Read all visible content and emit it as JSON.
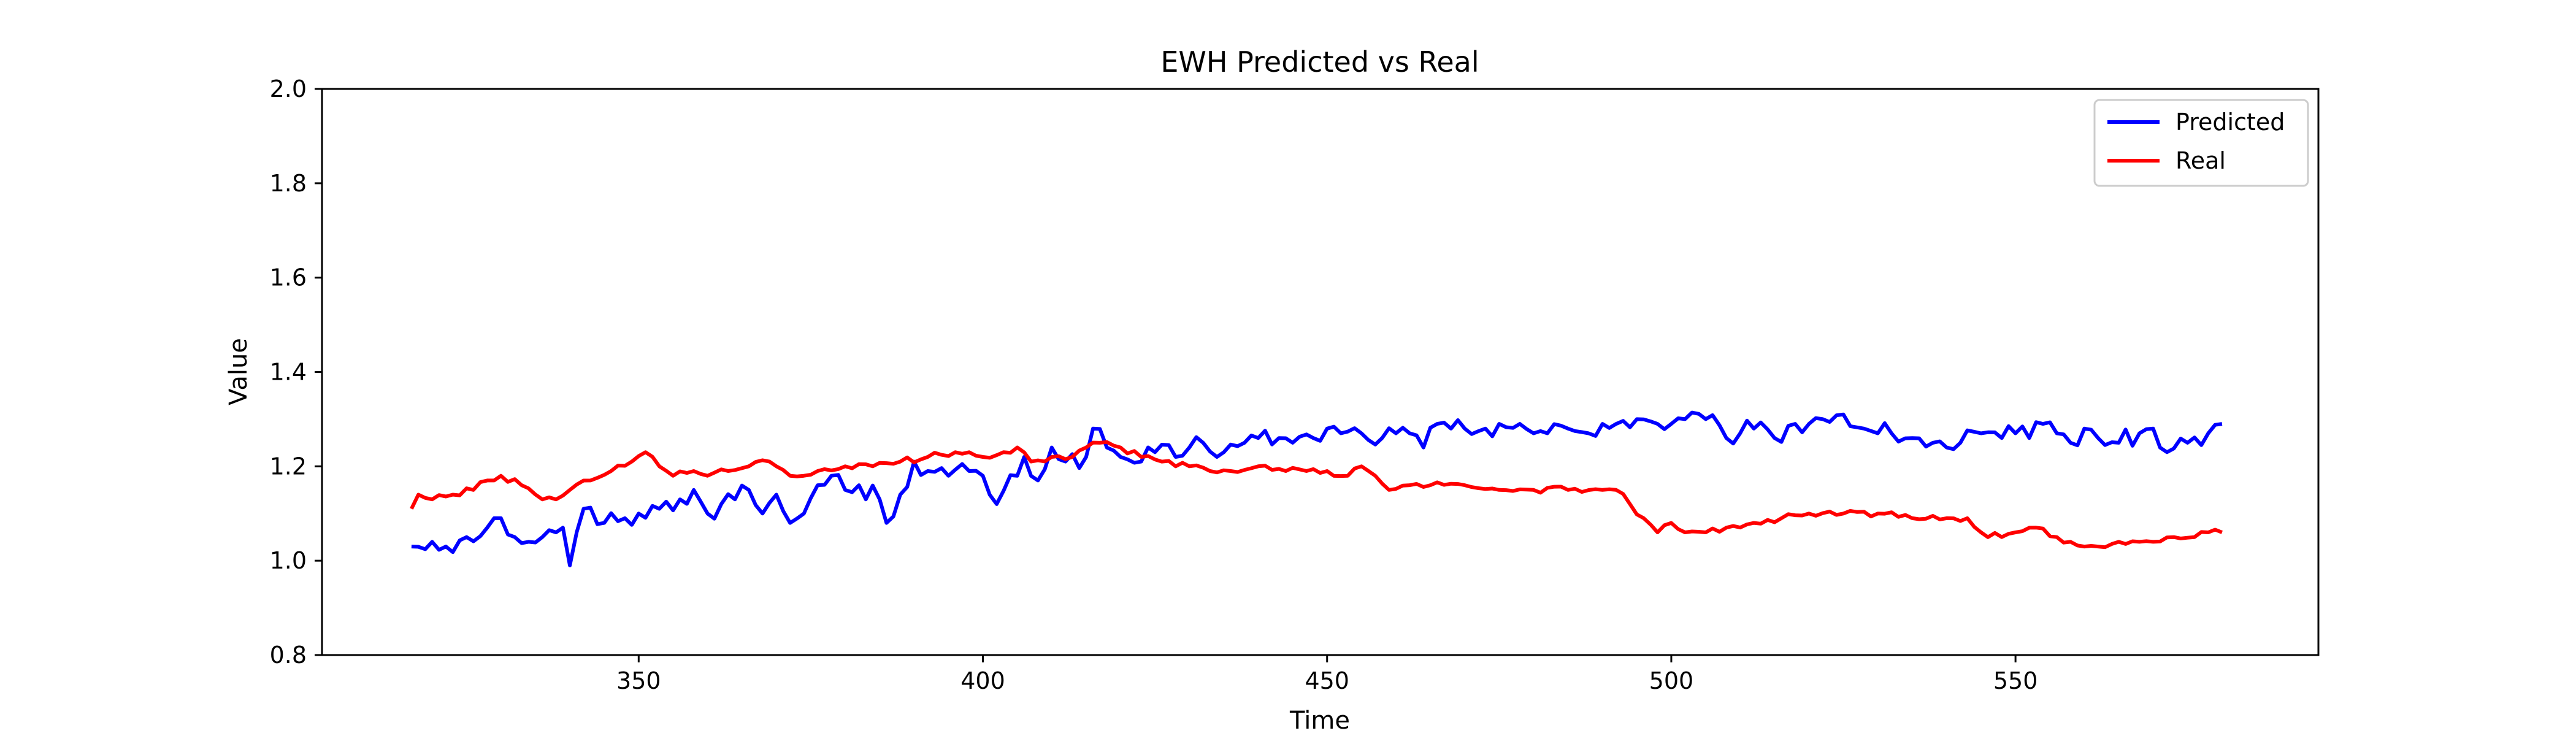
{
  "chart_data": {
    "type": "line",
    "title": "EWH Predicted vs Real",
    "xlabel": "Time",
    "ylabel": "Value",
    "xlim": [
      304,
      594
    ],
    "ylim": [
      0.8,
      2.0
    ],
    "xticks": [
      350,
      400,
      450,
      500,
      550
    ],
    "yticks": [
      0.8,
      1.0,
      1.2,
      1.4,
      1.6,
      1.8,
      2.0
    ],
    "xtick_labels": [
      "350",
      "400",
      "450",
      "500",
      "550"
    ],
    "ytick_labels": [
      "0.8",
      "1.0",
      "1.2",
      "1.4",
      "1.6",
      "1.8",
      "2.0"
    ],
    "grid": false,
    "legend_position": "top-right",
    "x_start": 317,
    "x_end": 580,
    "series": [
      {
        "name": "Predicted",
        "color": "#0000ff",
        "anchors": [
          [
            317,
            1.03
          ],
          [
            320,
            1.04
          ],
          [
            322,
            1.03
          ],
          [
            325,
            1.05
          ],
          [
            328,
            1.07
          ],
          [
            330,
            1.09
          ],
          [
            332,
            1.05
          ],
          [
            334,
            1.04
          ],
          [
            336,
            1.05
          ],
          [
            338,
            1.06
          ],
          [
            339,
            1.07
          ],
          [
            340,
            0.99
          ],
          [
            342,
            1.11
          ],
          [
            345,
            1.08
          ],
          [
            348,
            1.09
          ],
          [
            350,
            1.1
          ],
          [
            353,
            1.11
          ],
          [
            356,
            1.13
          ],
          [
            358,
            1.15
          ],
          [
            360,
            1.1
          ],
          [
            362,
            1.12
          ],
          [
            364,
            1.13
          ],
          [
            366,
            1.15
          ],
          [
            368,
            1.1
          ],
          [
            370,
            1.14
          ],
          [
            372,
            1.08
          ],
          [
            374,
            1.1
          ],
          [
            376,
            1.16
          ],
          [
            378,
            1.18
          ],
          [
            380,
            1.15
          ],
          [
            382,
            1.16
          ],
          [
            385,
            1.13
          ],
          [
            386,
            1.08
          ],
          [
            388,
            1.14
          ],
          [
            390,
            1.21
          ],
          [
            392,
            1.19
          ],
          [
            395,
            1.18
          ],
          [
            398,
            1.19
          ],
          [
            400,
            1.18
          ],
          [
            402,
            1.12
          ],
          [
            405,
            1.18
          ],
          [
            406,
            1.22
          ],
          [
            408,
            1.17
          ],
          [
            410,
            1.24
          ],
          [
            412,
            1.21
          ],
          [
            415,
            1.22
          ],
          [
            416,
            1.28
          ],
          [
            418,
            1.24
          ],
          [
            420,
            1.22
          ],
          [
            423,
            1.21
          ],
          [
            425,
            1.23
          ],
          [
            428,
            1.22
          ],
          [
            430,
            1.24
          ],
          [
            432,
            1.25
          ],
          [
            435,
            1.23
          ],
          [
            438,
            1.25
          ],
          [
            440,
            1.26
          ],
          [
            443,
            1.26
          ],
          [
            445,
            1.25
          ],
          [
            448,
            1.26
          ],
          [
            450,
            1.28
          ],
          [
            452,
            1.27
          ],
          [
            455,
            1.27
          ],
          [
            458,
            1.26
          ],
          [
            460,
            1.27
          ],
          [
            462,
            1.27
          ],
          [
            464,
            1.24
          ],
          [
            466,
            1.29
          ],
          [
            468,
            1.28
          ],
          [
            470,
            1.28
          ],
          [
            473,
            1.28
          ],
          [
            475,
            1.29
          ],
          [
            478,
            1.29
          ],
          [
            480,
            1.27
          ],
          [
            482,
            1.27
          ],
          [
            485,
            1.28
          ],
          [
            488,
            1.27
          ],
          [
            490,
            1.29
          ],
          [
            492,
            1.29
          ],
          [
            495,
            1.3
          ],
          [
            498,
            1.29
          ],
          [
            500,
            1.29
          ],
          [
            502,
            1.3
          ],
          [
            505,
            1.3
          ],
          [
            508,
            1.26
          ],
          [
            510,
            1.27
          ],
          [
            512,
            1.28
          ],
          [
            515,
            1.26
          ],
          [
            518,
            1.29
          ],
          [
            520,
            1.29
          ],
          [
            522,
            1.3
          ],
          [
            525,
            1.31
          ],
          [
            528,
            1.28
          ],
          [
            530,
            1.27
          ],
          [
            532,
            1.27
          ],
          [
            535,
            1.26
          ],
          [
            538,
            1.25
          ],
          [
            540,
            1.24
          ],
          [
            542,
            1.25
          ],
          [
            545,
            1.27
          ],
          [
            548,
            1.26
          ],
          [
            550,
            1.27
          ],
          [
            552,
            1.26
          ],
          [
            554,
            1.29
          ],
          [
            556,
            1.27
          ],
          [
            558,
            1.25
          ],
          [
            560,
            1.28
          ],
          [
            562,
            1.26
          ],
          [
            565,
            1.25
          ],
          [
            568,
            1.27
          ],
          [
            570,
            1.28
          ],
          [
            572,
            1.23
          ],
          [
            575,
            1.25
          ],
          [
            578,
            1.27
          ],
          [
            580,
            1.29
          ]
        ],
        "noise": 0.022
      },
      {
        "name": "Real",
        "color": "#ff0000",
        "anchors": [
          [
            317,
            1.11
          ],
          [
            318,
            1.14
          ],
          [
            320,
            1.13
          ],
          [
            323,
            1.14
          ],
          [
            326,
            1.15
          ],
          [
            328,
            1.17
          ],
          [
            330,
            1.18
          ],
          [
            333,
            1.16
          ],
          [
            336,
            1.13
          ],
          [
            338,
            1.13
          ],
          [
            340,
            1.15
          ],
          [
            343,
            1.17
          ],
          [
            346,
            1.19
          ],
          [
            349,
            1.21
          ],
          [
            351,
            1.23
          ],
          [
            353,
            1.2
          ],
          [
            355,
            1.18
          ],
          [
            358,
            1.19
          ],
          [
            360,
            1.18
          ],
          [
            363,
            1.19
          ],
          [
            366,
            1.2
          ],
          [
            369,
            1.21
          ],
          [
            372,
            1.18
          ],
          [
            374,
            1.18
          ],
          [
            376,
            1.19
          ],
          [
            380,
            1.2
          ],
          [
            384,
            1.2
          ],
          [
            388,
            1.21
          ],
          [
            392,
            1.22
          ],
          [
            396,
            1.23
          ],
          [
            398,
            1.23
          ],
          [
            400,
            1.22
          ],
          [
            403,
            1.23
          ],
          [
            405,
            1.24
          ],
          [
            407,
            1.21
          ],
          [
            410,
            1.22
          ],
          [
            413,
            1.22
          ],
          [
            415,
            1.24
          ],
          [
            417,
            1.25
          ],
          [
            420,
            1.24
          ],
          [
            423,
            1.22
          ],
          [
            426,
            1.21
          ],
          [
            430,
            1.2
          ],
          [
            433,
            1.19
          ],
          [
            436,
            1.19
          ],
          [
            440,
            1.2
          ],
          [
            444,
            1.19
          ],
          [
            447,
            1.19
          ],
          [
            450,
            1.19
          ],
          [
            453,
            1.18
          ],
          [
            455,
            1.2
          ],
          [
            457,
            1.18
          ],
          [
            459,
            1.15
          ],
          [
            462,
            1.16
          ],
          [
            465,
            1.16
          ],
          [
            470,
            1.16
          ],
          [
            475,
            1.15
          ],
          [
            480,
            1.15
          ],
          [
            485,
            1.15
          ],
          [
            490,
            1.15
          ],
          [
            492,
            1.15
          ],
          [
            494,
            1.12
          ],
          [
            496,
            1.09
          ],
          [
            498,
            1.06
          ],
          [
            500,
            1.08
          ],
          [
            502,
            1.06
          ],
          [
            505,
            1.06
          ],
          [
            508,
            1.07
          ],
          [
            512,
            1.08
          ],
          [
            516,
            1.09
          ],
          [
            520,
            1.1
          ],
          [
            525,
            1.1
          ],
          [
            530,
            1.1
          ],
          [
            535,
            1.09
          ],
          [
            540,
            1.09
          ],
          [
            543,
            1.09
          ],
          [
            545,
            1.06
          ],
          [
            548,
            1.05
          ],
          [
            550,
            1.06
          ],
          [
            553,
            1.07
          ],
          [
            556,
            1.05
          ],
          [
            558,
            1.04
          ],
          [
            560,
            1.03
          ],
          [
            562,
            1.03
          ],
          [
            565,
            1.04
          ],
          [
            568,
            1.04
          ],
          [
            570,
            1.04
          ],
          [
            573,
            1.05
          ],
          [
            576,
            1.05
          ],
          [
            578,
            1.06
          ],
          [
            580,
            1.06
          ]
        ],
        "noise": 0.007
      }
    ]
  }
}
